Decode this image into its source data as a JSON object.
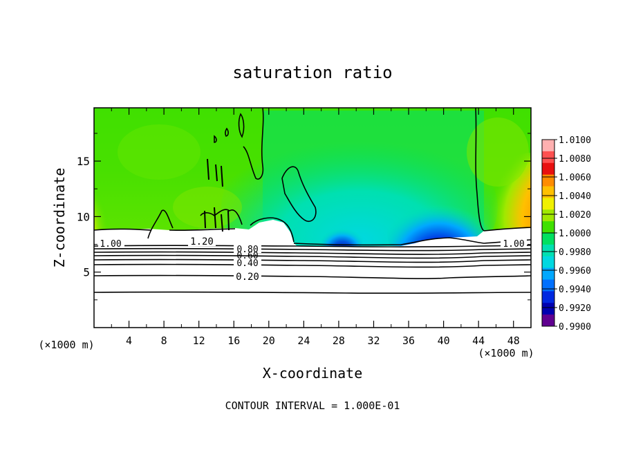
{
  "chart_data": {
    "type": "heatmap",
    "title": "saturation ratio",
    "xlabel": "X-coordinate",
    "ylabel": "Z-coordinate",
    "x_unit": "(×1000 m)",
    "y_unit": "(×1000 m)",
    "xlim": [
      0,
      50
    ],
    "ylim": [
      0,
      19.8
    ],
    "x_ticks": [
      "4",
      "8",
      "12",
      "16",
      "20",
      "24",
      "28",
      "32",
      "36",
      "40",
      "44",
      "48"
    ],
    "y_ticks": [
      "5",
      "10",
      "15"
    ],
    "footer": "CONTOUR INTERVAL = 1.000E-01",
    "colorbar": {
      "labels": [
        "1.0100",
        "1.0080",
        "1.0060",
        "1.0040",
        "1.0020",
        "1.0000",
        "0.9980",
        "0.9960",
        "0.9940",
        "0.9920",
        "0.9900"
      ],
      "colors": [
        "#ffb0b0",
        "#ff5050",
        "#e81010",
        "#ff8c00",
        "#ffc000",
        "#f0f000",
        "#a0e800",
        "#40e000",
        "#00e060",
        "#00e0b0",
        "#00d8e0",
        "#00a8ff",
        "#0070ff",
        "#0028e0",
        "#0000b0",
        "#600090"
      ]
    },
    "contour_labels": [
      "1.20",
      "1.00",
      "0.80",
      "0.60",
      "0.40",
      "0.20",
      "1.00"
    ],
    "grid": false
  }
}
